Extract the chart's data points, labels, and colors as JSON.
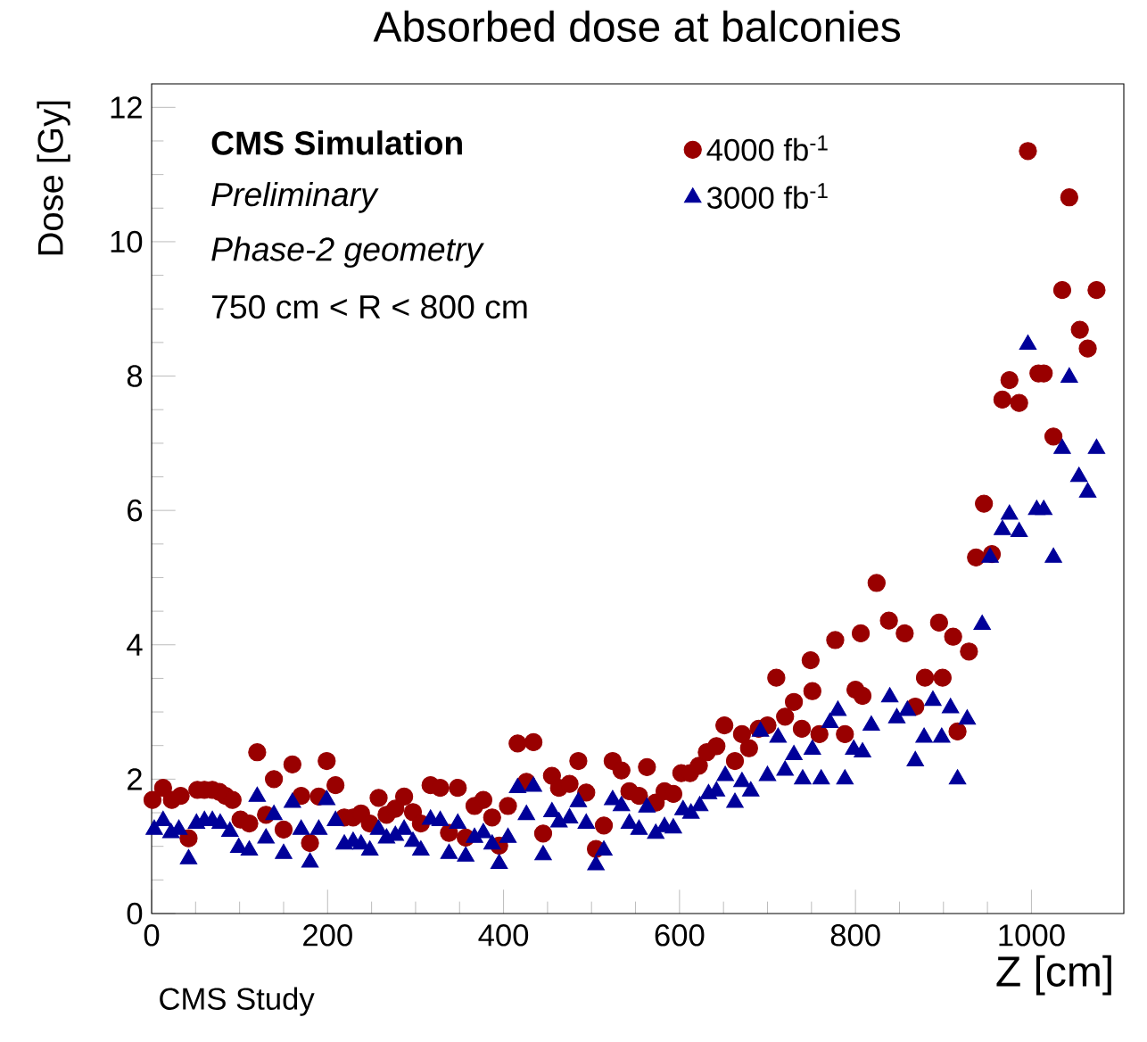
{
  "chart_data": {
    "type": "scatter",
    "title": "Absorbed dose at balconies",
    "xlabel": "Z [cm]",
    "ylabel": "Dose [Gy]",
    "xlim": [
      0,
      1105
    ],
    "ylim": [
      0,
      12.35
    ],
    "xticks": [
      0,
      200,
      400,
      600,
      800,
      1000
    ],
    "yticks": [
      0,
      2,
      4,
      6,
      8,
      10,
      12
    ],
    "legend": "top right",
    "annotations": [
      "CMS Simulation",
      "Preliminary",
      "Phase-2 geometry",
      "750 cm < R < 800 cm",
      "CMS Study"
    ],
    "series": [
      {
        "name": "4000 fb$^{-1}$",
        "color": "#990000",
        "marker": "circle",
        "x": [
          1,
          13,
          23,
          33,
          42,
          52,
          60,
          69,
          77,
          84,
          92,
          101,
          111,
          120,
          130,
          139,
          150,
          160,
          170,
          180,
          190,
          199,
          209,
          219,
          229,
          238,
          248,
          258,
          267,
          277,
          287,
          297,
          306,
          317,
          328,
          338,
          348,
          357,
          367,
          377,
          387,
          395,
          405,
          416,
          426,
          434,
          445,
          455,
          463,
          475,
          485,
          494,
          505,
          514,
          524,
          534,
          543,
          554,
          563,
          573,
          583,
          593,
          602,
          612,
          622,
          631,
          642,
          651,
          663,
          671,
          679,
          690,
          700,
          710,
          720,
          730,
          739,
          749,
          751,
          759,
          777,
          788,
          800,
          806,
          808,
          824,
          838,
          856,
          868,
          879,
          895,
          899,
          911,
          916,
          929,
          937,
          946,
          955,
          967,
          975,
          986,
          996,
          1008,
          1014,
          1025,
          1035,
          1043,
          1055,
          1064,
          1074
        ],
        "values": [
          1.69,
          1.87,
          1.69,
          1.75,
          1.12,
          1.84,
          1.84,
          1.84,
          1.81,
          1.75,
          1.69,
          1.4,
          1.34,
          2.4,
          1.47,
          2.0,
          1.25,
          2.22,
          1.75,
          1.05,
          1.74,
          2.27,
          1.91,
          1.43,
          1.43,
          1.49,
          1.34,
          1.72,
          1.47,
          1.56,
          1.74,
          1.51,
          1.34,
          1.91,
          1.87,
          1.2,
          1.87,
          1.13,
          1.6,
          1.69,
          1.43,
          1.01,
          1.6,
          2.53,
          1.96,
          2.55,
          1.19,
          2.05,
          1.87,
          1.93,
          2.27,
          1.8,
          0.96,
          1.31,
          2.27,
          2.13,
          1.82,
          1.75,
          2.18,
          1.65,
          1.82,
          1.78,
          2.09,
          2.09,
          2.2,
          2.4,
          2.49,
          2.8,
          2.27,
          2.67,
          2.46,
          2.75,
          2.8,
          3.51,
          2.93,
          3.15,
          2.75,
          3.77,
          3.31,
          2.67,
          4.07,
          2.67,
          3.33,
          4.17,
          3.24,
          4.92,
          4.36,
          4.17,
          3.08,
          3.51,
          4.33,
          3.51,
          4.12,
          2.71,
          3.9,
          5.3,
          6.1,
          5.35,
          7.65,
          7.94,
          7.6,
          11.35,
          8.04,
          8.04,
          7.1,
          9.28,
          10.66,
          8.69,
          8.41,
          9.28
        ]
      },
      {
        "name": "3000 fb$^{-1}$",
        "color": "#000099",
        "marker": "triangle",
        "x": [
          3,
          13,
          22,
          31,
          42,
          51,
          60,
          69,
          78,
          89,
          99,
          111,
          120,
          130,
          139,
          150,
          160,
          170,
          180,
          190,
          199,
          209,
          219,
          229,
          238,
          248,
          258,
          267,
          277,
          287,
          297,
          306,
          317,
          328,
          338,
          348,
          357,
          367,
          377,
          387,
          395,
          405,
          416,
          426,
          434,
          445,
          455,
          463,
          475,
          485,
          494,
          505,
          514,
          524,
          534,
          543,
          554,
          563,
          573,
          583,
          593,
          604,
          613,
          623,
          633,
          642,
          652,
          663,
          671,
          681,
          692,
          700,
          712,
          720,
          730,
          740,
          751,
          761,
          771,
          780,
          788,
          798,
          808,
          818,
          839,
          847,
          859,
          868,
          878,
          888,
          898,
          908,
          916,
          927,
          944,
          953,
          967,
          975,
          986,
          996,
          1006,
          1014,
          1025,
          1035,
          1043,
          1054,
          1064,
          1074
        ],
        "values": [
          1.25,
          1.38,
          1.2,
          1.25,
          0.81,
          1.34,
          1.38,
          1.38,
          1.34,
          1.22,
          0.98,
          0.94,
          1.74,
          1.12,
          1.47,
          0.89,
          1.65,
          1.25,
          0.76,
          1.25,
          1.69,
          1.38,
          1.03,
          1.07,
          1.03,
          0.94,
          1.25,
          1.12,
          1.16,
          1.25,
          1.07,
          0.94,
          1.4,
          1.38,
          0.89,
          1.34,
          0.85,
          1.13,
          1.2,
          1.03,
          0.74,
          1.13,
          1.87,
          1.47,
          1.89,
          0.87,
          1.51,
          1.36,
          1.42,
          1.66,
          1.34,
          0.72,
          0.94,
          1.69,
          1.6,
          1.34,
          1.25,
          1.58,
          1.19,
          1.29,
          1.27,
          1.54,
          1.49,
          1.6,
          1.78,
          1.82,
          2.05,
          1.65,
          1.96,
          1.82,
          2.71,
          2.05,
          2.62,
          2.13,
          2.36,
          2.0,
          2.44,
          2.0,
          2.84,
          3.02,
          2.0,
          2.44,
          2.4,
          2.8,
          3.22,
          2.91,
          3.02,
          2.27,
          2.62,
          3.17,
          2.62,
          3.06,
          2.0,
          2.89,
          4.3,
          5.3,
          5.71,
          5.94,
          5.68,
          8.47,
          6.01,
          6.01,
          5.3,
          6.92,
          7.98,
          6.5,
          6.27,
          6.92
        ]
      }
    ]
  }
}
